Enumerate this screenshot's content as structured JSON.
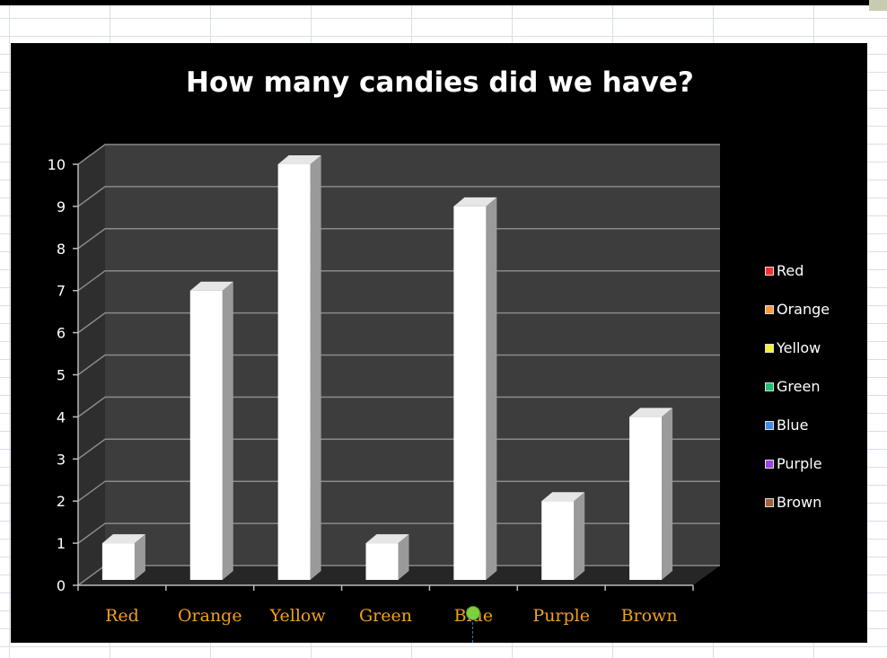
{
  "chart_data": {
    "type": "bar",
    "title": "How many candies did we have?",
    "categories": [
      "Red",
      "Orange",
      "Yellow",
      "Green",
      "Blue",
      "Purple",
      "Brown"
    ],
    "values": [
      1,
      7,
      10,
      1,
      9,
      2,
      4
    ],
    "ylim": [
      0,
      10
    ],
    "yticks": [
      0,
      1,
      2,
      3,
      4,
      5,
      6,
      7,
      8,
      9,
      10
    ],
    "xlabel": "",
    "ylabel": "",
    "grid": true,
    "legend_position": "right",
    "legend": [
      "Red",
      "Orange",
      "Yellow",
      "Green",
      "Blue",
      "Purple",
      "Brown"
    ],
    "legend_colors": [
      "#ff3030",
      "#ff9a3c",
      "#f2f23a",
      "#20c070",
      "#3a8ee8",
      "#a040e0",
      "#a0603a"
    ],
    "bar_color": "#ffffff",
    "tick_label_color": "#f0a020"
  }
}
